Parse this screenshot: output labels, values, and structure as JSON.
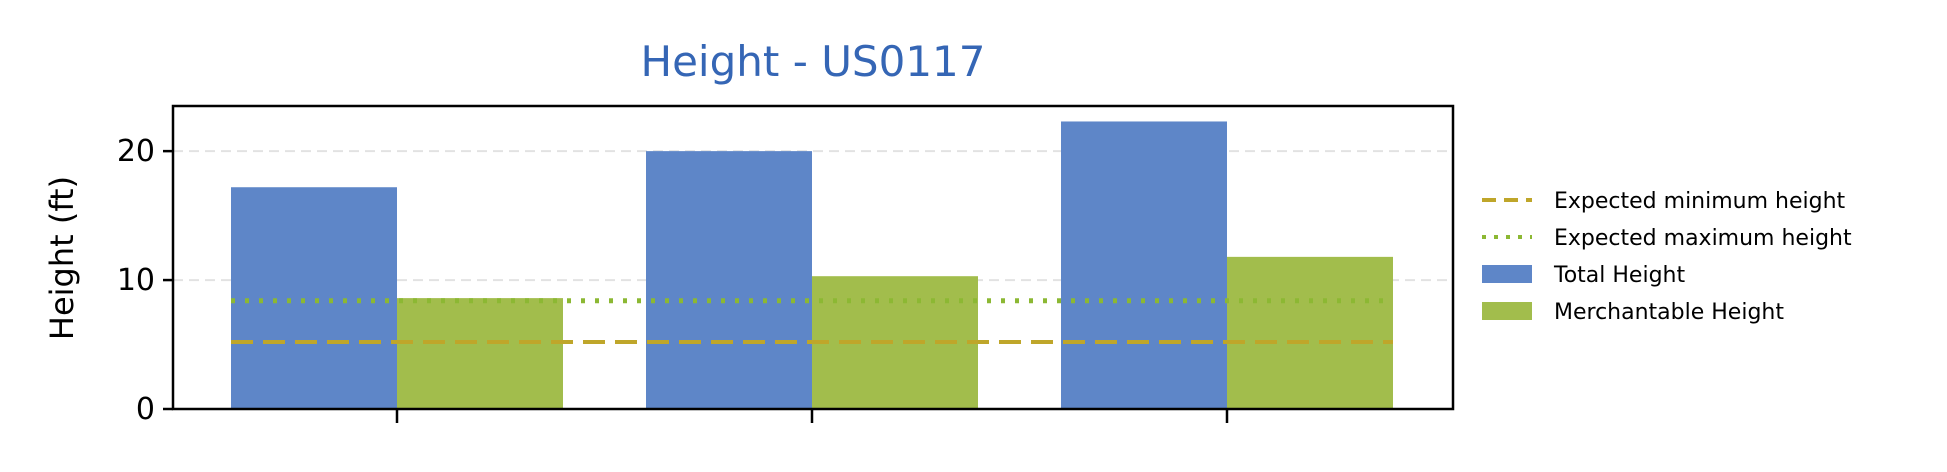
{
  "chart_data": {
    "type": "bar",
    "title": "Height - US0117",
    "xlabel": "",
    "ylabel": "Height (ft)",
    "ylim": [
      0,
      23.5
    ],
    "yticks": [
      0,
      10,
      20
    ],
    "categories": [
      "",
      "",
      ""
    ],
    "series": [
      {
        "name": "Total Height",
        "values": [
          17.2,
          20.0,
          22.3
        ],
        "color": "#5e86c8"
      },
      {
        "name": "Merchantable Height",
        "values": [
          8.6,
          10.3,
          11.8
        ],
        "color": "#a2bd4c"
      }
    ],
    "reference_lines": [
      {
        "name": "Expected minimum height",
        "value": 5.2,
        "style": "dashed",
        "color": "#bfa62a"
      },
      {
        "name": "Expected maximum height",
        "value": 8.4,
        "style": "dotted",
        "color": "#8cb833"
      }
    ],
    "grid": "horizontal",
    "legend_position": "right",
    "title_color": "#3566b5"
  }
}
